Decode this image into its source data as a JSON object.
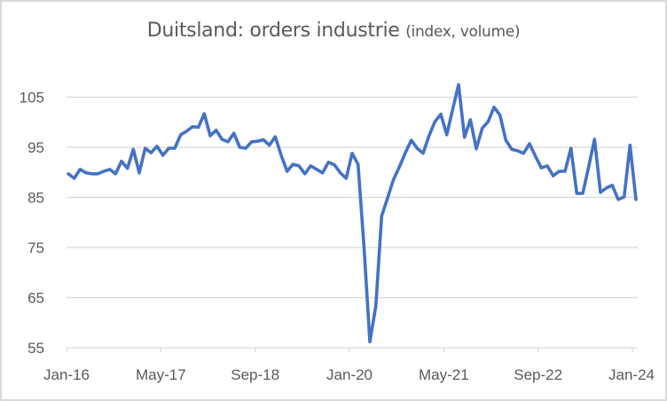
{
  "chart_data": {
    "type": "line",
    "title": "Duitsland: orders industrie",
    "subtitle": "(index, volume)",
    "xlabel": "",
    "ylabel": "",
    "ylim": [
      55,
      105
    ],
    "yticks": [
      "105",
      "95",
      "85",
      "75",
      "65",
      "55"
    ],
    "ytick_values": [
      105,
      95,
      85,
      75,
      65,
      55
    ],
    "xticks": [
      "Jan-16",
      "May-17",
      "Sep-18",
      "Jan-20",
      "May-21",
      "Sep-22",
      "Jan-24"
    ],
    "xtick_month_index": [
      0,
      16,
      32,
      48,
      64,
      80,
      96
    ],
    "x_start": "Jan-16",
    "x_end": "Jan-24",
    "grid": true,
    "legend": "none",
    "series": [
      {
        "name": "orders industrie",
        "color": "#4472c4",
        "values": [
          89.7,
          88.8,
          90.6,
          89.9,
          89.7,
          89.7,
          90.2,
          90.6,
          89.7,
          92.2,
          90.8,
          94.6,
          89.9,
          94.8,
          93.9,
          95.2,
          93.4,
          94.8,
          94.8,
          97.5,
          98.2,
          99.1,
          99.0,
          101.7,
          97.3,
          98.4,
          96.6,
          96.1,
          97.8,
          95.0,
          94.8,
          96.1,
          96.2,
          96.5,
          95.4,
          97.1,
          93.4,
          90.2,
          91.6,
          91.3,
          89.7,
          91.3,
          90.6,
          89.9,
          92.0,
          91.5,
          89.9,
          88.8,
          93.8,
          91.6,
          75.4,
          56.2,
          63.3,
          81.3,
          84.9,
          88.6,
          91.1,
          93.9,
          96.4,
          94.8,
          93.8,
          97.3,
          100.1,
          101.6,
          97.5,
          102.5,
          107.5,
          97.0,
          100.5,
          94.7,
          98.8,
          100.1,
          103.0,
          101.4,
          96.4,
          94.6,
          94.3,
          93.8,
          95.7,
          93.2,
          90.9,
          91.3,
          89.3,
          90.2,
          90.2,
          94.8,
          85.8,
          85.8,
          91.1,
          96.6,
          86.0,
          86.9,
          87.4,
          84.6,
          85.1,
          95.4,
          84.6
        ]
      }
    ],
    "colors": {
      "gridline": "#d9d9d9",
      "text": "#595959",
      "line": "#4472c4"
    }
  }
}
